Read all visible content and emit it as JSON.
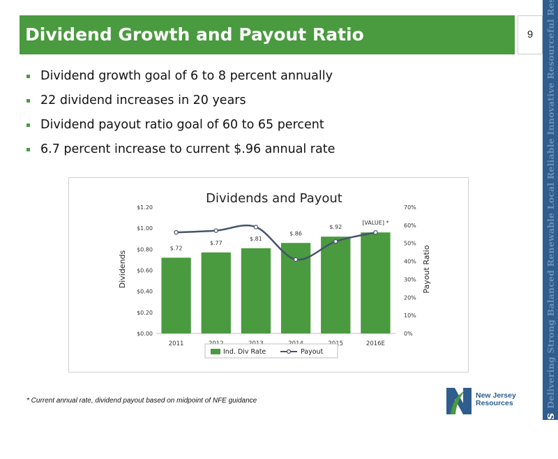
{
  "header": {
    "title": "Dividend Growth and Payout Ratio",
    "page_number": "9"
  },
  "sidebar": {
    "lead_word": "Always",
    "tagline": "Delivering Strong Balanced Renewable Local Reliable Innovative Resourceful Responsive"
  },
  "bullets": [
    "Dividend growth goal of 6 to 8 percent annually",
    "22 dividend increases in 20 years",
    "Dividend payout ratio goal of 60 to 65 percent",
    "6.7 percent increase to current $.96 annual rate"
  ],
  "footnote": "*  Current annual rate, dividend payout based on midpoint of NFE guidance",
  "logo": {
    "line1": "New Jersey",
    "line2": "Resources"
  },
  "colors": {
    "brand_green": "#4a9a3f",
    "bar_green": "#4a9a3f",
    "line_blue": "#44546a",
    "sidebar_blue": "#2e5d8e"
  },
  "chart_data": {
    "type": "bar",
    "title": "Dividends and Payout",
    "categories": [
      "2011",
      "2012",
      "2013",
      "2014",
      "2015",
      "2016E"
    ],
    "ylabel": "Dividends",
    "y2label": "Payout Ratio",
    "ylim": [
      0,
      1.2
    ],
    "y_ticks": [
      "$0.00",
      "$0.20",
      "$0.40",
      "$0.60",
      "$0.80",
      "$1.00",
      "$1.20"
    ],
    "y2lim": [
      0,
      0.7
    ],
    "y2_ticks": [
      "0%",
      "10%",
      "20%",
      "30%",
      "40%",
      "50%",
      "60%",
      "70%"
    ],
    "legend_position": "bottom",
    "grid": false,
    "series": [
      {
        "name": "Ind. Div Rate",
        "kind": "bar",
        "axis": "left",
        "values": [
          0.72,
          0.77,
          0.81,
          0.86,
          0.92,
          0.96
        ],
        "labels": [
          "$.72",
          "$.77",
          "$.81",
          "$.86",
          "$.92",
          "[VALUE] *"
        ]
      },
      {
        "name": "Payout",
        "kind": "line",
        "axis": "right",
        "values": [
          0.56,
          0.57,
          0.59,
          0.41,
          0.51,
          0.56
        ]
      }
    ]
  }
}
